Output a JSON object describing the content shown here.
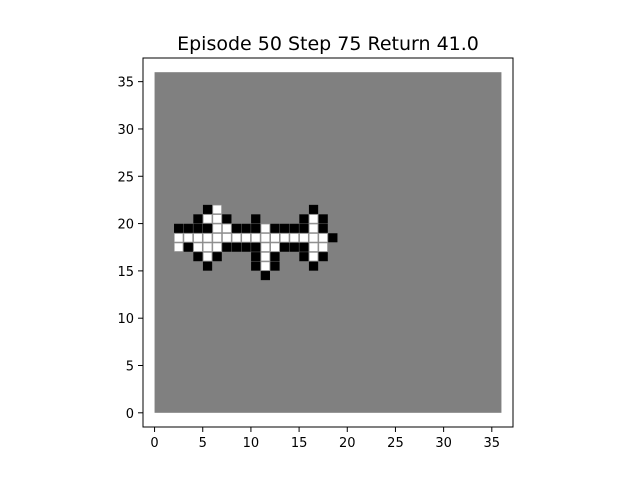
{
  "title": "Episode 50 Step 75 Return 41.0",
  "chart_data": {
    "type": "heatmap",
    "title": "Episode 50 Step 75 Return 41.0",
    "grid_size": 36,
    "xlim": [
      -1.2,
      37.2
    ],
    "ylim": [
      -1.5,
      37.5
    ],
    "xticks": [
      0,
      5,
      10,
      15,
      20,
      25,
      30,
      35
    ],
    "yticks": [
      0,
      5,
      10,
      15,
      20,
      25,
      30,
      35
    ],
    "background_color": "#808080",
    "cell_colors": {
      "black": "#000000",
      "white": "#ffffff"
    },
    "cells_black": [
      [
        5,
        21
      ],
      [
        16,
        21
      ],
      [
        4,
        20
      ],
      [
        7,
        20
      ],
      [
        10,
        20
      ],
      [
        15,
        20
      ],
      [
        17,
        20
      ],
      [
        2,
        19
      ],
      [
        3,
        19
      ],
      [
        4,
        19
      ],
      [
        5,
        19
      ],
      [
        8,
        19
      ],
      [
        9,
        19
      ],
      [
        10,
        19
      ],
      [
        12,
        19
      ],
      [
        13,
        19
      ],
      [
        14,
        19
      ],
      [
        15,
        19
      ],
      [
        17,
        19
      ],
      [
        18,
        18
      ],
      [
        3,
        17
      ],
      [
        7,
        17
      ],
      [
        8,
        17
      ],
      [
        9,
        17
      ],
      [
        10,
        17
      ],
      [
        13,
        17
      ],
      [
        14,
        17
      ],
      [
        15,
        17
      ],
      [
        4,
        16
      ],
      [
        6,
        16
      ],
      [
        10,
        16
      ],
      [
        12,
        16
      ],
      [
        15,
        16
      ],
      [
        17,
        16
      ],
      [
        5,
        15
      ],
      [
        10,
        15
      ],
      [
        12,
        15
      ],
      [
        16,
        15
      ],
      [
        11,
        14
      ]
    ],
    "cells_white": [
      [
        6,
        21
      ],
      [
        5,
        20
      ],
      [
        6,
        20
      ],
      [
        16,
        20
      ],
      [
        6,
        19
      ],
      [
        7,
        19
      ],
      [
        11,
        19
      ],
      [
        16,
        19
      ],
      [
        2,
        18
      ],
      [
        3,
        18
      ],
      [
        4,
        18
      ],
      [
        5,
        18
      ],
      [
        6,
        18
      ],
      [
        7,
        18
      ],
      [
        8,
        18
      ],
      [
        9,
        18
      ],
      [
        10,
        18
      ],
      [
        11,
        18
      ],
      [
        12,
        18
      ],
      [
        13,
        18
      ],
      [
        14,
        18
      ],
      [
        15,
        18
      ],
      [
        16,
        18
      ],
      [
        17,
        18
      ],
      [
        2,
        17
      ],
      [
        4,
        17
      ],
      [
        5,
        17
      ],
      [
        6,
        17
      ],
      [
        11,
        17
      ],
      [
        12,
        17
      ],
      [
        16,
        17
      ],
      [
        17,
        17
      ],
      [
        5,
        16
      ],
      [
        11,
        16
      ],
      [
        16,
        16
      ],
      [
        11,
        15
      ]
    ]
  }
}
